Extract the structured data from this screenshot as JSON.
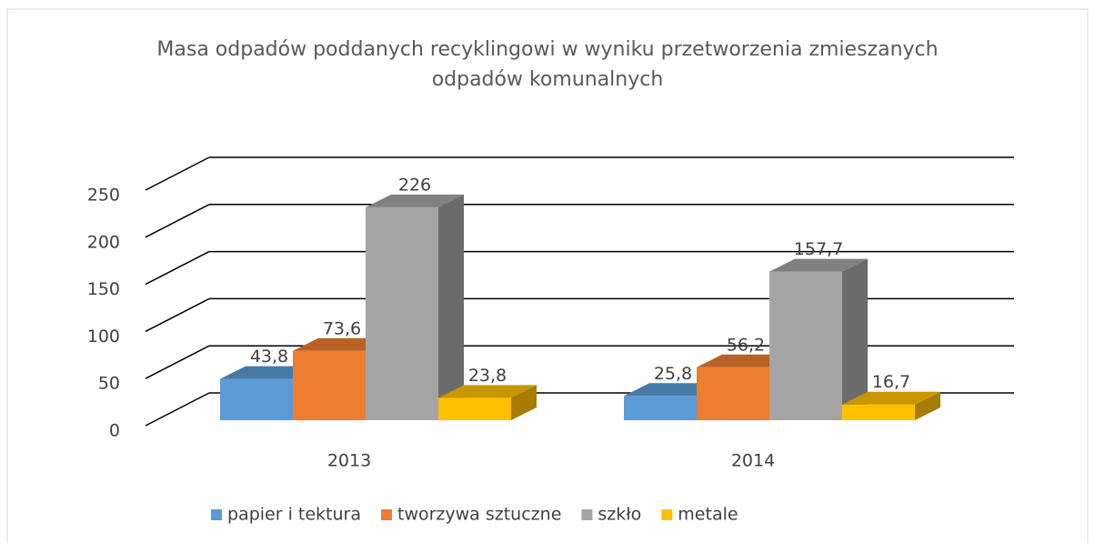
{
  "chart_data": {
    "type": "bar3d",
    "title": "Masa odpadów poddanych recyklingowi w wyniku przetworzenia zmieszanych odpadów komunalnych",
    "categories": [
      "2013",
      "2014"
    ],
    "series": [
      {
        "name": "papier i tektura",
        "color": "#5b9bd5",
        "values": [
          43.8,
          25.8
        ],
        "value_labels": [
          "43,8",
          "25,8"
        ]
      },
      {
        "name": "tworzywa sztuczne",
        "color": "#ed7d31",
        "values": [
          73.6,
          56.2
        ],
        "value_labels": [
          "73,6",
          "56,2"
        ]
      },
      {
        "name": "szkło",
        "color": "#a5a5a5",
        "values": [
          226,
          157.7
        ],
        "value_labels": [
          "226",
          "157,7"
        ]
      },
      {
        "name": "metale",
        "color": "#ffc000",
        "values": [
          23.8,
          16.7
        ],
        "value_labels": [
          "23,8",
          "16,7"
        ]
      }
    ],
    "ylim": [
      0,
      250
    ],
    "yticks": [
      0,
      50,
      100,
      150,
      200,
      250
    ],
    "grid": true,
    "legend": "bottom"
  }
}
